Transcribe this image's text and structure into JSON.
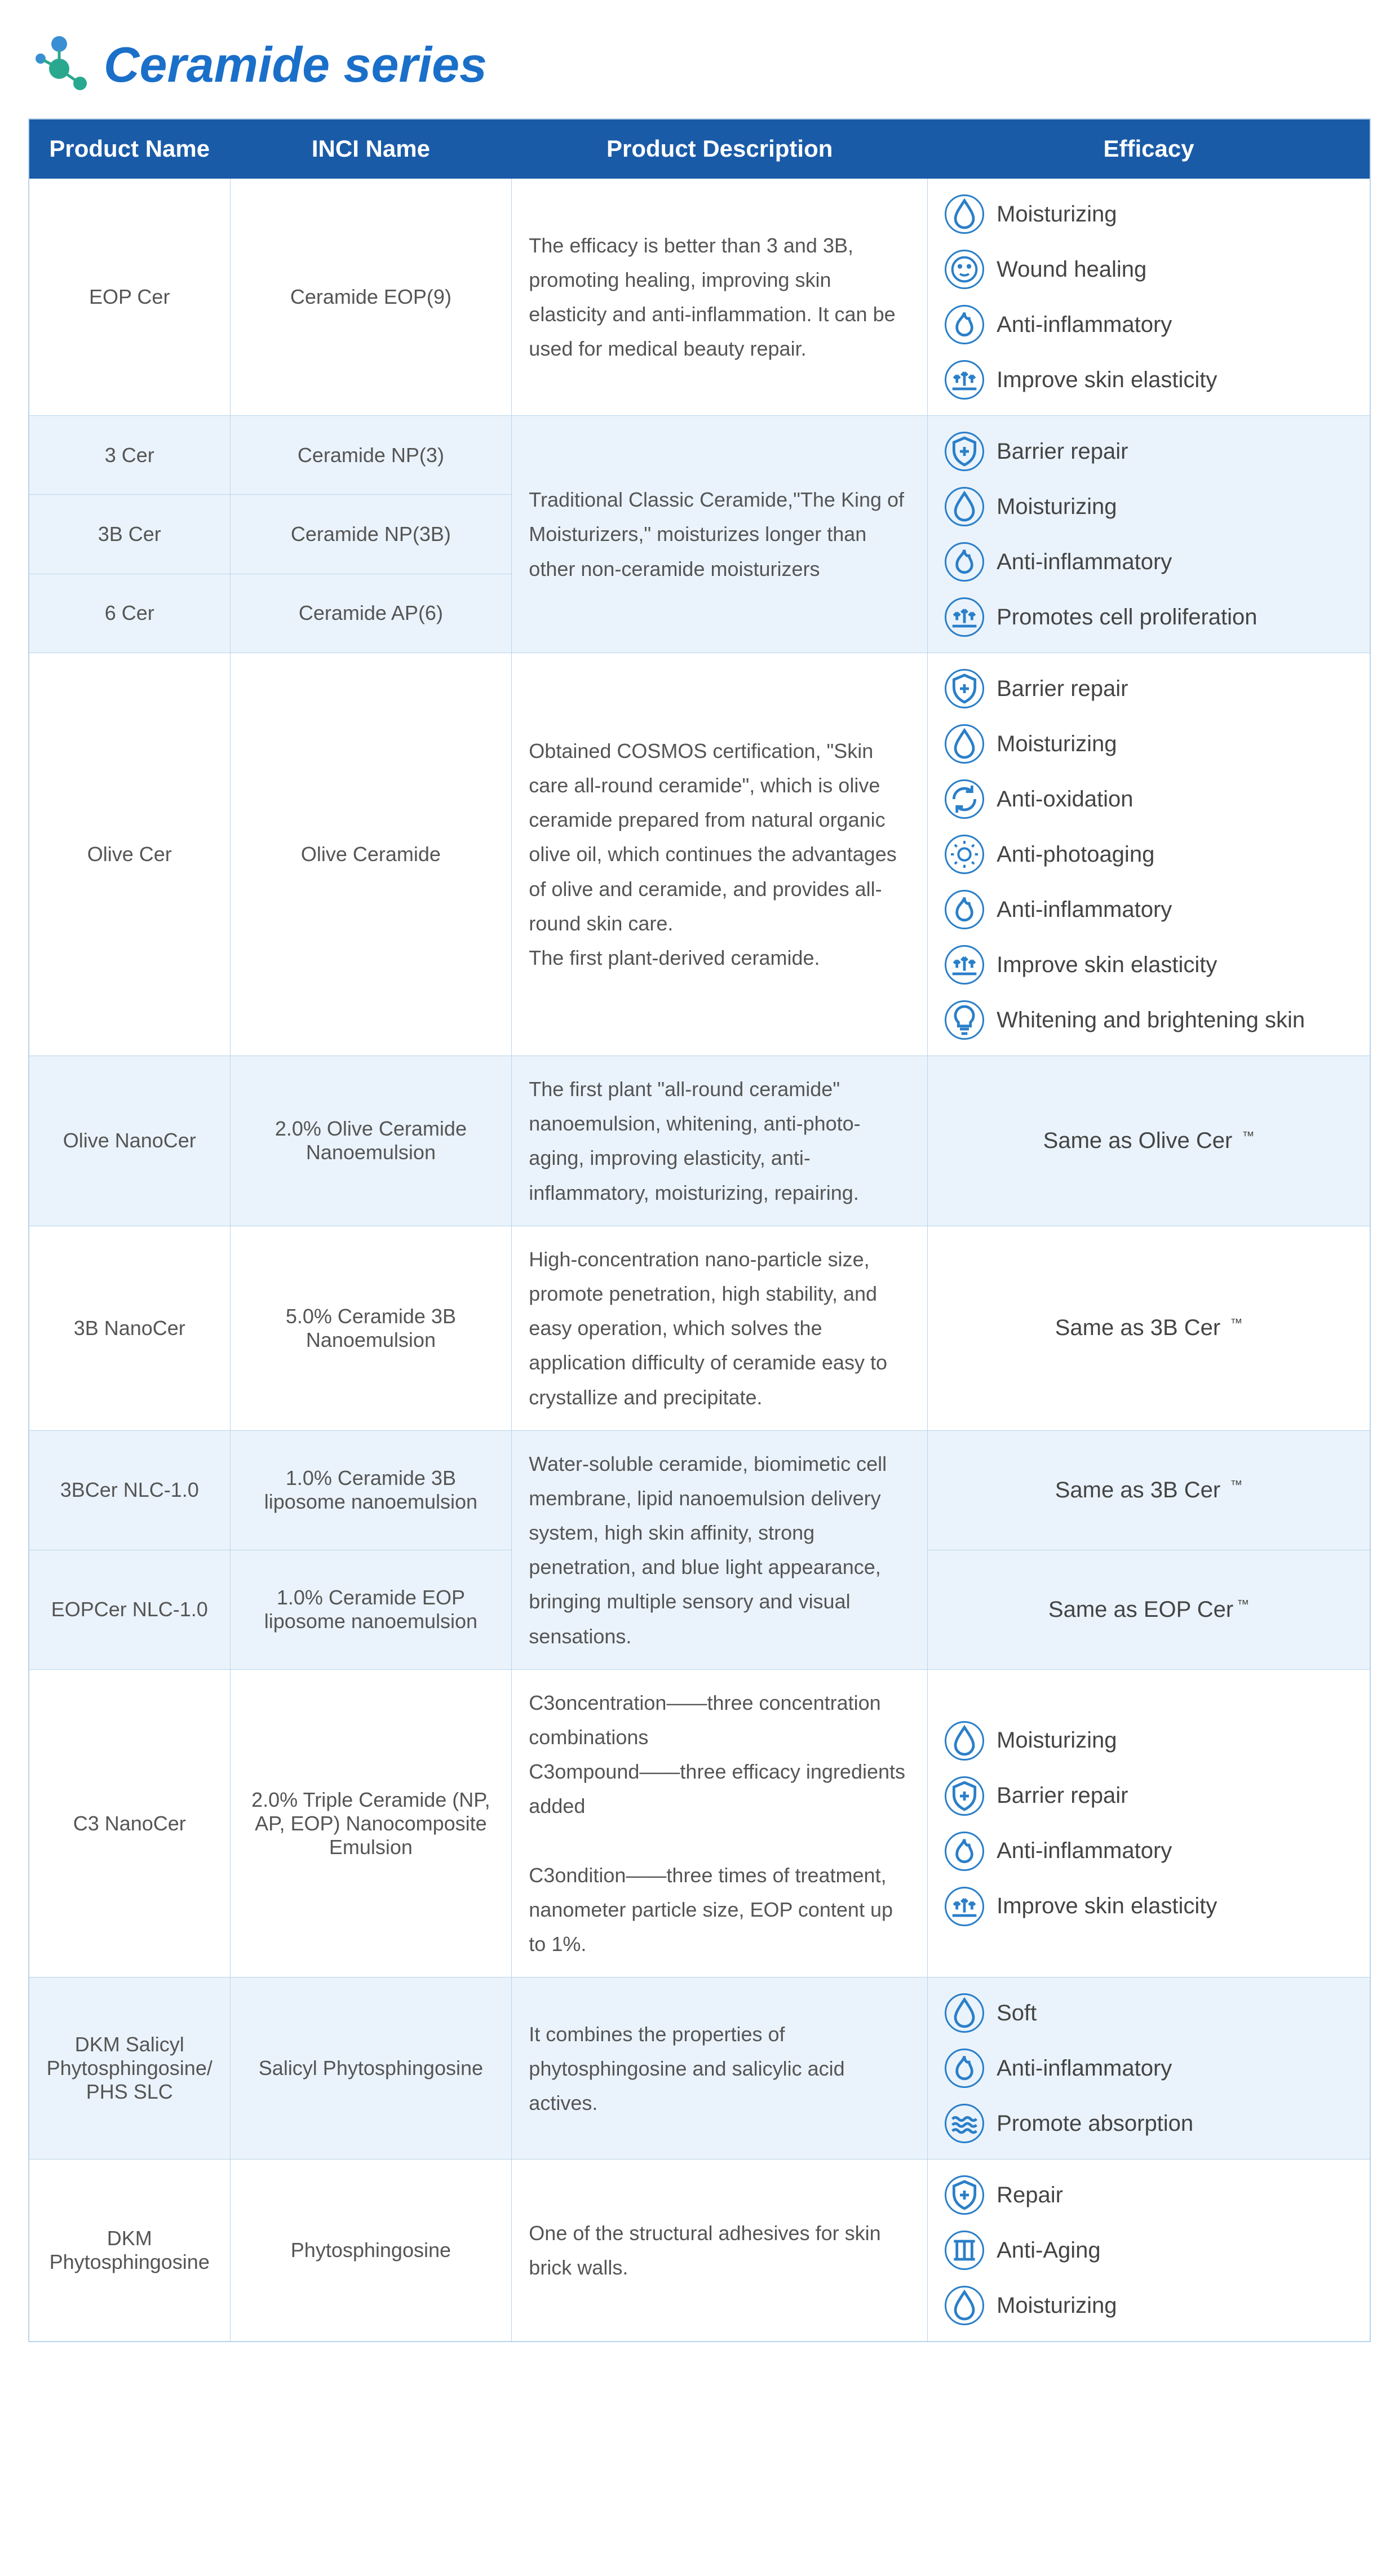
{
  "page": {
    "title": "Ceramide series",
    "title_color": "#1a6fc9",
    "logo_dots": [
      "#3a8fd4",
      "#3a8fd4",
      "#2aa88f",
      "#2aa88f"
    ]
  },
  "table": {
    "header_bg": "#1a5ba8",
    "header_text_color": "#ffffff",
    "border_color": "#b8d4ea",
    "alt_row_bg": "#eaf3fb",
    "columns": [
      "Product Name",
      "INCI Name",
      "Product Description",
      "Efficacy"
    ],
    "icon_color": "#2a7fc9",
    "rows": [
      {
        "group_bg": "white",
        "cells": [
          {
            "name": "EOP Cer",
            "inci": "Ceramide EOP(9)"
          }
        ],
        "description": "The efficacy is better than 3 and 3B, promoting healing, improving skin elasticity and anti-inflammation. It can be used for medical beauty repair.",
        "efficacy": [
          {
            "icon": "drop",
            "label": "Moisturizing"
          },
          {
            "icon": "face",
            "label": "Wound healing"
          },
          {
            "icon": "flame",
            "label": "Anti-inflammatory"
          },
          {
            "icon": "arrows",
            "label": "Improve skin elasticity"
          }
        ]
      },
      {
        "group_bg": "alt",
        "cells": [
          {
            "name": "3 Cer",
            "inci": "Ceramide NP(3)"
          },
          {
            "name": "3B Cer",
            "inci": "Ceramide NP(3B)"
          },
          {
            "name": "6 Cer",
            "inci": "Ceramide AP(6)"
          }
        ],
        "description": "Traditional Classic Ceramide,\"The King of Moisturizers,\" moisturizes longer than other non-ceramide moisturizers",
        "efficacy": [
          {
            "icon": "shield",
            "label": "Barrier repair"
          },
          {
            "icon": "drop",
            "label": "Moisturizing"
          },
          {
            "icon": "flame",
            "label": "Anti-inflammatory"
          },
          {
            "icon": "arrows",
            "label": "Promotes cell proliferation"
          }
        ]
      },
      {
        "group_bg": "white",
        "cells": [
          {
            "name": "Olive Cer",
            "inci": "Olive Ceramide"
          }
        ],
        "description": "Obtained COSMOS certification, \"Skin care all-round ceramide\", which is olive ceramide prepared from natural organic olive oil, which continues the advantages of olive and ceramide, and provides all-round skin care.\nThe first plant-derived ceramide.",
        "efficacy": [
          {
            "icon": "shield",
            "label": "Barrier repair"
          },
          {
            "icon": "drop",
            "label": "Moisturizing"
          },
          {
            "icon": "cycle",
            "label": "Anti-oxidation"
          },
          {
            "icon": "sun",
            "label": "Anti-photoaging"
          },
          {
            "icon": "flame",
            "label": "Anti-inflammatory"
          },
          {
            "icon": "arrows",
            "label": "Improve skin elasticity"
          },
          {
            "icon": "bulb",
            "label": "Whitening and brightening skin"
          }
        ]
      },
      {
        "group_bg": "alt",
        "cells": [
          {
            "name": "Olive NanoCer",
            "inci": "2.0% Olive Ceramide Nanoemulsion"
          }
        ],
        "description": "The first plant \"all-round ceramide\" nanoemulsion, whitening, anti-photo-aging, improving elasticity, anti-inflammatory, moisturizing, repairing.",
        "efficacy_same_as": "Same as Olive Cer ™"
      },
      {
        "group_bg": "white",
        "cells": [
          {
            "name": "3B NanoCer",
            "inci": "5.0% Ceramide 3B Nanoemulsion"
          }
        ],
        "description": "High-concentration nano-particle size, promote penetration, high stability, and easy operation, which solves the application difficulty of ceramide easy to crystallize and precipitate.",
        "efficacy_same_as": "Same as 3B Cer ™"
      },
      {
        "group_bg": "alt",
        "cells": [
          {
            "name": "3BCer NLC-1.0",
            "inci": "1.0% Ceramide 3B liposome nanoemulsion",
            "eff_same_as": "Same as 3B Cer ™"
          },
          {
            "name": "EOPCer NLC-1.0",
            "inci": "1.0% Ceramide EOP liposome nanoemulsion",
            "eff_same_as": "Same as EOP Cer™"
          }
        ],
        "description": "Water-soluble ceramide, biomimetic cell membrane, lipid nanoemulsion delivery system, high skin affinity, strong penetration, and blue light appearance, bringing multiple sensory and visual sensations.",
        "efficacy_per_row": true
      },
      {
        "group_bg": "white",
        "cells": [
          {
            "name": "C3 NanoCer",
            "inci": "2.0% Triple Ceramide (NP, AP, EOP) Nanocomposite Emulsion"
          }
        ],
        "description": "C3oncentration——three concentration combinations\nC3ompound——three efficacy ingredients added\n\nC3ondition——three times of treatment, nanometer particle size, EOP content up to 1%.",
        "efficacy": [
          {
            "icon": "drop",
            "label": "Moisturizing"
          },
          {
            "icon": "shield",
            "label": "Barrier repair"
          },
          {
            "icon": "flame",
            "label": "Anti-inflammatory"
          },
          {
            "icon": "arrows",
            "label": "Improve skin elasticity"
          }
        ]
      },
      {
        "group_bg": "alt",
        "cells": [
          {
            "name": "DKM Salicyl Phytosphingosine/ PHS SLC",
            "inci": "Salicyl Phytosphingosine"
          }
        ],
        "description": " It combines the properties of phytosphingosine and salicylic acid actives.",
        "efficacy": [
          {
            "icon": "drop",
            "label": "Soft"
          },
          {
            "icon": "flame",
            "label": "Anti-inflammatory"
          },
          {
            "icon": "waves",
            "label": "Promote absorption"
          }
        ]
      },
      {
        "group_bg": "white",
        "cells": [
          {
            "name": "DKM Phytosphingosine",
            "inci": "Phytosphingosine"
          }
        ],
        "description": "One of the structural adhesives for skin brick walls.",
        "efficacy": [
          {
            "icon": "shield",
            "label": "Repair"
          },
          {
            "icon": "pillars",
            "label": "Anti-Aging"
          },
          {
            "icon": "drop",
            "label": "Moisturizing"
          }
        ]
      }
    ]
  }
}
